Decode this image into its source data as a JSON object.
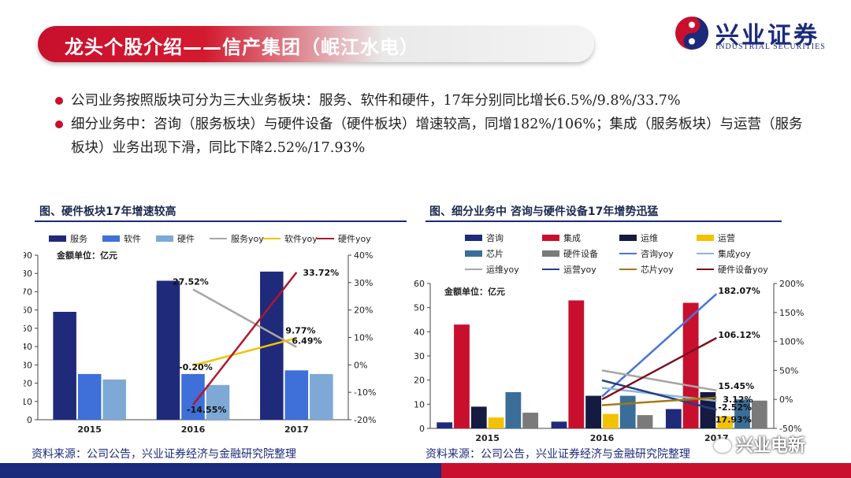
{
  "header": {
    "title": "龙头个股介绍——信产集团（岷江水电）"
  },
  "logo": {
    "cn": "兴业证券",
    "en": "INDUSTRIAL SECURITIES"
  },
  "bullets": [
    {
      "text": "公司业务按照版块可分为三大业务板块：服务、软件和硬件，17年分别同比增长6.5%/9.8%/33.7%"
    },
    {
      "text": "细分业务中：咨询（服务板块）与硬件设备（硬件板块）增速较高，同增182%/106%；集成（服务板块）与运营（服务板块）业务出现下滑，同比下降2.52%/17.93%"
    }
  ],
  "source_left": "资料来源：公司公告，兴业证券经济与金融研究院整理",
  "source_right": "资料来源：公司公告，兴业证券经济与金融研究院整理",
  "watermark": "兴业电新",
  "chart_data": [
    {
      "type": "bar",
      "title": "图、硬件板块17年增速较高",
      "unit_label": "金额单位：亿元",
      "categories": [
        "2015",
        "2016",
        "2017"
      ],
      "ylim": [
        0,
        90
      ],
      "yticks": [
        "0",
        "10",
        "20",
        "30",
        "40",
        "50",
        "60",
        "70",
        "80",
        "90"
      ],
      "y2lim": [
        -20,
        40
      ],
      "y2ticks": [
        "-20%",
        "-10%",
        "0%",
        "10%",
        "20%",
        "30%",
        "40%"
      ],
      "series": [
        {
          "name": "服务",
          "kind": "bar",
          "color": "#1f2a7a",
          "values": [
            59,
            76,
            81
          ]
        },
        {
          "name": "软件",
          "kind": "bar",
          "color": "#3f6fd8",
          "values": [
            25,
            25,
            27
          ]
        },
        {
          "name": "硬件",
          "kind": "bar",
          "color": "#7ea9d6",
          "values": [
            22,
            19,
            25
          ]
        },
        {
          "name": "服务yoy",
          "kind": "line",
          "color": "#a6a6a6",
          "values": [
            null,
            27.52,
            6.49
          ]
        },
        {
          "name": "软件yoy",
          "kind": "line",
          "color": "#f2c200",
          "values": [
            null,
            -0.2,
            9.77
          ]
        },
        {
          "name": "硬件yoy",
          "kind": "line",
          "color": "#b0182e",
          "values": [
            null,
            -14.55,
            33.72
          ]
        }
      ],
      "labels": [
        {
          "text": "27.52%",
          "series": "服务yoy",
          "i": 1
        },
        {
          "text": "6.49%",
          "series": "服务yoy",
          "i": 2
        },
        {
          "text": "-0.20%",
          "series": "软件yoy",
          "i": 1
        },
        {
          "text": "9.77%",
          "series": "软件yoy",
          "i": 2
        },
        {
          "text": "-14.55%",
          "series": "硬件yoy",
          "i": 1
        },
        {
          "text": "33.72%",
          "series": "硬件yoy",
          "i": 2
        }
      ]
    },
    {
      "type": "bar",
      "title": "图、细分业务中 咨询与硬件设备17年增势迅猛",
      "unit_label": "金额单位：亿元",
      "categories": [
        "2015",
        "2016",
        "2017"
      ],
      "ylim": [
        0,
        60
      ],
      "yticks": [
        "0",
        "10",
        "20",
        "30",
        "40",
        "50",
        "60"
      ],
      "y2lim": [
        -50,
        200
      ],
      "y2ticks": [
        "-50%",
        "0%",
        "50%",
        "100%",
        "150%",
        "200%"
      ],
      "series": [
        {
          "name": "咨询",
          "kind": "bar",
          "color": "#1f2a7a",
          "values": [
            2.5,
            2.8,
            8
          ]
        },
        {
          "name": "集成",
          "kind": "bar",
          "color": "#c8102e",
          "values": [
            43,
            53,
            52
          ]
        },
        {
          "name": "运维",
          "kind": "bar",
          "color": "#151a40",
          "values": [
            9,
            13.5,
            15
          ]
        },
        {
          "name": "运营",
          "kind": "bar",
          "color": "#f2c200",
          "values": [
            4.5,
            6,
            5
          ]
        },
        {
          "name": "芯片",
          "kind": "bar",
          "color": "#3a6e98",
          "values": [
            15,
            13.5,
            12
          ]
        },
        {
          "name": "硬件设备",
          "kind": "bar",
          "color": "#7a7a7a",
          "values": [
            6.5,
            5.5,
            11.5
          ]
        },
        {
          "name": "咨询yoy",
          "kind": "line",
          "color": "#4a73d8",
          "values": [
            null,
            5,
            182.07
          ]
        },
        {
          "name": "集成yoy",
          "kind": "line",
          "color": "#8fb6d8",
          "values": [
            null,
            20,
            -2.52
          ]
        },
        {
          "name": "运维yoy",
          "kind": "line",
          "color": "#a6a6a6",
          "values": [
            null,
            50,
            15.45
          ]
        },
        {
          "name": "运营yoy",
          "kind": "line",
          "color": "#1f3f8a",
          "values": [
            null,
            33,
            -17.93
          ]
        },
        {
          "name": "芯片yoy",
          "kind": "line",
          "color": "#a07a10",
          "values": [
            null,
            -10,
            3.12
          ]
        },
        {
          "name": "硬件设备yoy",
          "kind": "line",
          "color": "#7a1020",
          "values": [
            null,
            0,
            106.12
          ]
        }
      ],
      "labels": [
        {
          "text": "182.07%",
          "series": "咨询yoy",
          "i": 2
        },
        {
          "text": "106.12%",
          "series": "硬件设备yoy",
          "i": 2
        },
        {
          "text": "15.45%",
          "series": "运维yoy",
          "i": 2
        },
        {
          "text": "3.12%",
          "series": "芯片yoy",
          "i": 2
        },
        {
          "text": "-2.52%",
          "series": "集成yoy",
          "i": 2
        },
        {
          "text": "-17.93%",
          "series": "运营yoy",
          "i": 2
        }
      ]
    }
  ]
}
